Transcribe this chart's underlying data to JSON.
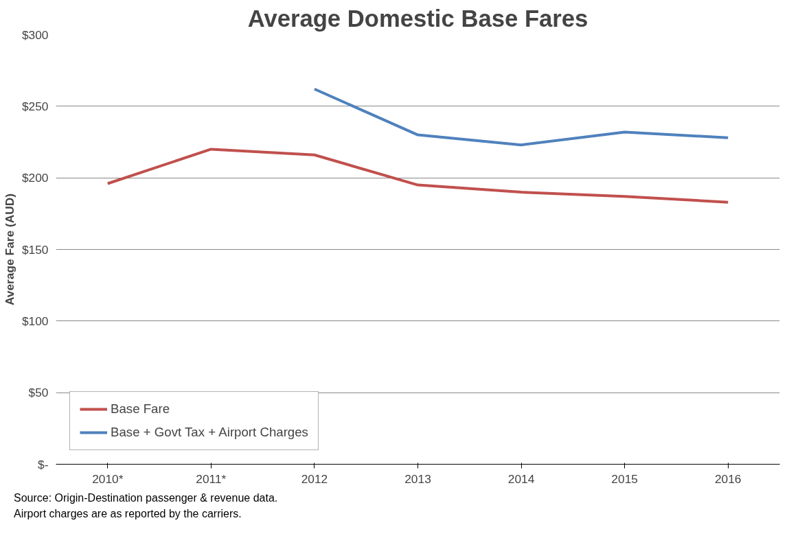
{
  "chart_data": {
    "type": "line",
    "title": "Average Domestic Base Fares",
    "ylabel": "Average Fare (AUD)",
    "categories": [
      "2010*",
      "2011*",
      "2012",
      "2013",
      "2014",
      "2015",
      "2016"
    ],
    "series": [
      {
        "name": "Base Fare",
        "color": "#c0504d",
        "values": [
          196,
          220,
          216,
          195,
          190,
          187,
          183
        ]
      },
      {
        "name": "Base + Govt Tax + Airport Charges",
        "color": "#4f81bd",
        "values": [
          null,
          null,
          262,
          230,
          223,
          232,
          228
        ]
      }
    ],
    "ylim": [
      0,
      300
    ],
    "yticks": [
      {
        "value": 0,
        "label": "$-"
      },
      {
        "value": 50,
        "label": "$50"
      },
      {
        "value": 100,
        "label": "$100"
      },
      {
        "value": 150,
        "label": "$150"
      },
      {
        "value": 200,
        "label": "$200"
      },
      {
        "value": 250,
        "label": "$250"
      },
      {
        "value": 300,
        "label": "$300"
      }
    ],
    "grid": "y",
    "legend": "bottom left",
    "marker": "none",
    "line_style": "solid",
    "annotations": [
      "Source: Origin-Destination passenger & revenue data.",
      "Airport charges are as reported by the carriers."
    ]
  }
}
